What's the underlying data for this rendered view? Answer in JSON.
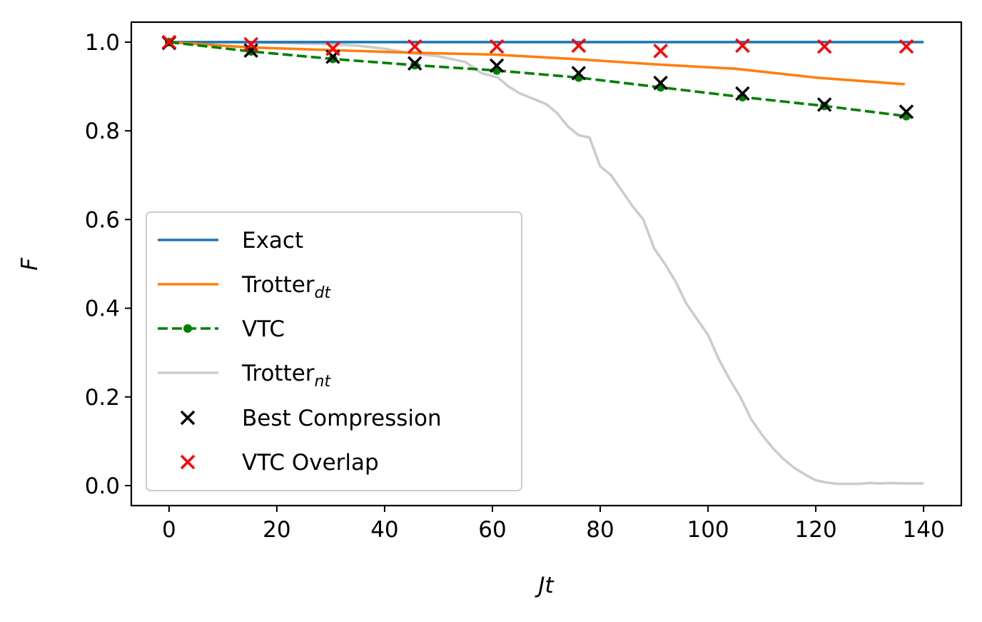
{
  "chart_data": {
    "type": "line",
    "title": "",
    "xlabel": "Jt",
    "ylabel": "F",
    "xlim": [
      -7,
      147
    ],
    "ylim": [
      -0.045,
      1.045
    ],
    "xticks": [
      0,
      20,
      40,
      60,
      80,
      100,
      120,
      140
    ],
    "yticks": [
      0.0,
      0.2,
      0.4,
      0.6,
      0.8,
      1.0
    ],
    "xtick_labels": [
      "0",
      "20",
      "40",
      "60",
      "80",
      "100",
      "120",
      "140"
    ],
    "ytick_labels": [
      "0.0",
      "0.2",
      "0.4",
      "0.6",
      "0.8",
      "1.0"
    ],
    "grid": false,
    "legend_placement": "lower-left",
    "series": [
      {
        "name": "Exact",
        "kind": "line",
        "color": "#1f77b4",
        "x": [
          0,
          140
        ],
        "y": [
          1.0,
          1.0
        ]
      },
      {
        "name": "Trotter",
        "name_subscript": "dt",
        "kind": "line",
        "color": "#ff7f0e",
        "x": [
          0,
          15,
          30,
          45,
          60,
          75,
          90,
          105,
          120,
          136.5
        ],
        "y": [
          1.0,
          0.988,
          0.982,
          0.976,
          0.972,
          0.962,
          0.95,
          0.94,
          0.92,
          0.905
        ]
      },
      {
        "name": "VTC",
        "kind": "dashed-line-markers",
        "color": "#008000",
        "x": [
          0,
          15.2,
          30.4,
          45.6,
          60.8,
          76,
          91.2,
          106.4,
          121.6,
          136.8
        ],
        "y": [
          1.0,
          0.979,
          0.962,
          0.948,
          0.936,
          0.92,
          0.898,
          0.876,
          0.856,
          0.833
        ]
      },
      {
        "name": "Trotter",
        "name_subscript": "nt",
        "kind": "line",
        "color": "#cccccc",
        "x": [
          0,
          10,
          20,
          30,
          35,
          40,
          45,
          50,
          55,
          58,
          61,
          63,
          65,
          68,
          70,
          72,
          74,
          76,
          78,
          80,
          82,
          84,
          86,
          88,
          90,
          92,
          94,
          96,
          98,
          100,
          102,
          104,
          106,
          108,
          110,
          112,
          114,
          116,
          118,
          120,
          122,
          124,
          126,
          128,
          130,
          132,
          134,
          136,
          138,
          140
        ],
        "y": [
          1.0,
          1.0,
          0.998,
          0.995,
          0.992,
          0.985,
          0.975,
          0.968,
          0.955,
          0.93,
          0.92,
          0.9,
          0.885,
          0.87,
          0.86,
          0.84,
          0.81,
          0.79,
          0.785,
          0.72,
          0.7,
          0.665,
          0.63,
          0.6,
          0.535,
          0.5,
          0.46,
          0.41,
          0.375,
          0.34,
          0.285,
          0.24,
          0.2,
          0.15,
          0.115,
          0.085,
          0.06,
          0.04,
          0.025,
          0.012,
          0.007,
          0.004,
          0.004,
          0.004,
          0.006,
          0.005,
          0.006,
          0.005,
          0.005,
          0.005
        ]
      },
      {
        "name": "Best Compression",
        "kind": "scatter-x",
        "color": "#000000",
        "x": [
          0,
          15.2,
          30.4,
          45.6,
          60.8,
          76,
          91.2,
          106.4,
          121.6,
          136.8
        ],
        "y": [
          0.998,
          0.981,
          0.967,
          0.952,
          0.947,
          0.93,
          0.908,
          0.884,
          0.859,
          0.843
        ]
      },
      {
        "name": "VTC Overlap",
        "kind": "scatter-x",
        "color": "#ff0000",
        "x": [
          0,
          15.2,
          30.4,
          45.6,
          60.8,
          76,
          91.2,
          106.4,
          121.6,
          136.8
        ],
        "y": [
          1.0,
          0.995,
          0.985,
          0.99,
          0.99,
          0.992,
          0.98,
          0.992,
          0.99,
          0.99
        ]
      }
    ],
    "legend": [
      {
        "label": "Exact",
        "sub": ""
      },
      {
        "label": "Trotter",
        "sub": "dt"
      },
      {
        "label": "VTC",
        "sub": ""
      },
      {
        "label": "Trotter",
        "sub": "nt"
      },
      {
        "label": "Best Compression",
        "sub": ""
      },
      {
        "label": "VTC Overlap",
        "sub": ""
      }
    ]
  }
}
